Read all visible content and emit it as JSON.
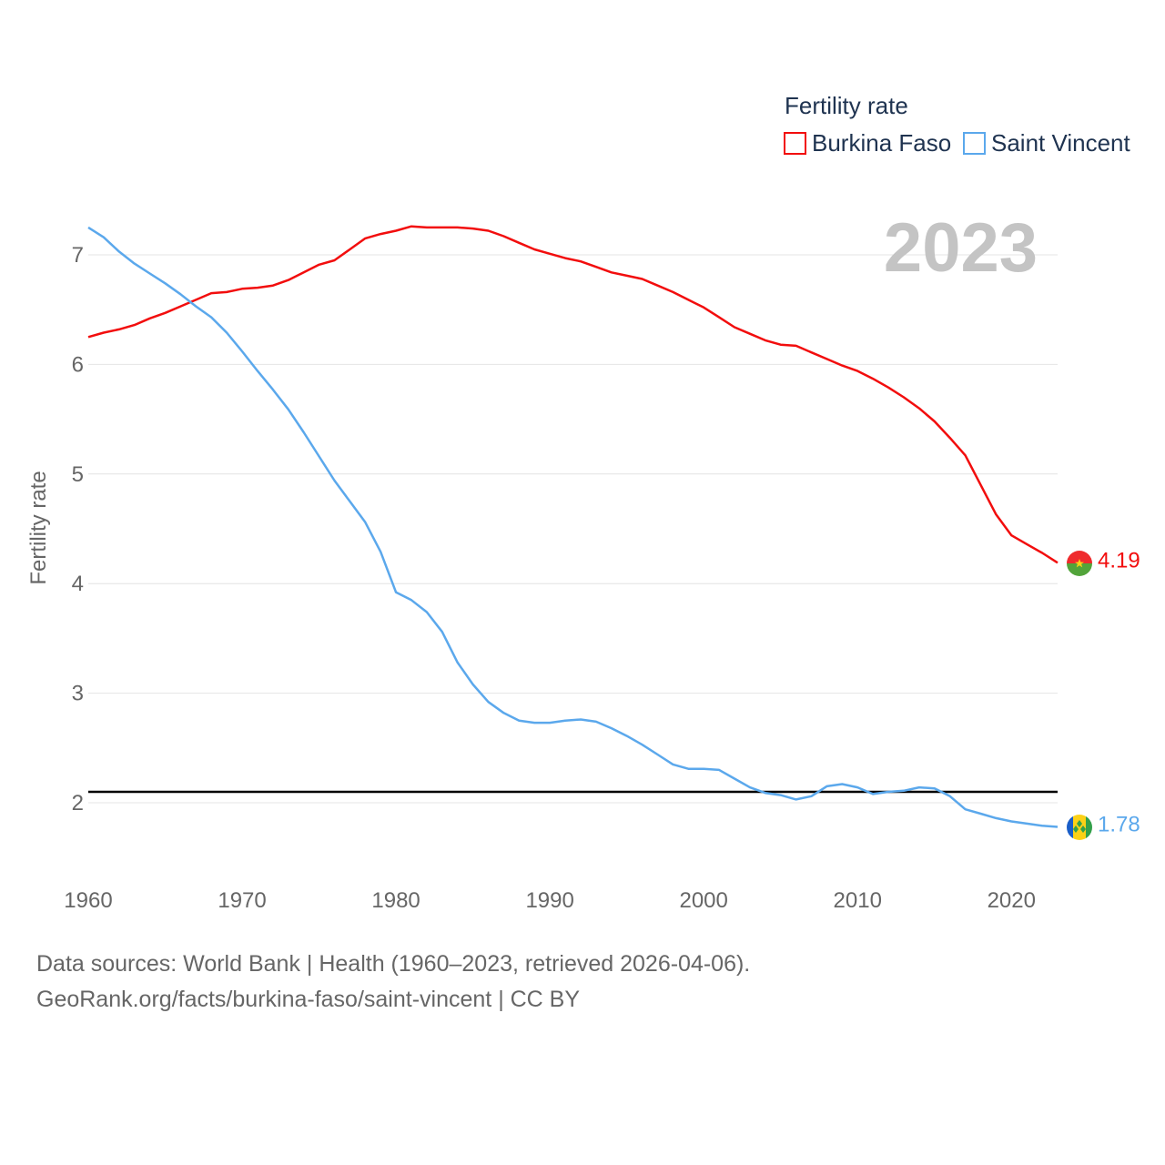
{
  "legend": {
    "title": "Fertility rate",
    "items": [
      {
        "label": "Burkina Faso",
        "color": "#f20d0d"
      },
      {
        "label": "Saint Vincent",
        "color": "#5ba8ec"
      }
    ]
  },
  "year_label": "2023",
  "source": {
    "line1": "Data sources: World Bank | Health (1960–2023, retrieved 2026-04-06).",
    "line2": "GeoRank.org/facts/burkina-faso/saint-vincent | CC BY"
  },
  "chart_data": {
    "type": "line",
    "title": "Fertility rate",
    "xlabel": "",
    "ylabel": "Fertility rate",
    "xlim": [
      1960,
      2023
    ],
    "ylim": [
      1.4,
      7.5
    ],
    "x_ticks": [
      1960,
      1970,
      1980,
      1990,
      2000,
      2010,
      2020
    ],
    "y_ticks": [
      2,
      3,
      4,
      5,
      6,
      7
    ],
    "grid": true,
    "reference_line": {
      "y": 2.1,
      "color": "#000000"
    },
    "x": [
      1960,
      1961,
      1962,
      1963,
      1964,
      1965,
      1966,
      1967,
      1968,
      1969,
      1970,
      1971,
      1972,
      1973,
      1974,
      1975,
      1976,
      1977,
      1978,
      1979,
      1980,
      1981,
      1982,
      1983,
      1984,
      1985,
      1986,
      1987,
      1988,
      1989,
      1990,
      1991,
      1992,
      1993,
      1994,
      1995,
      1996,
      1997,
      1998,
      1999,
      2000,
      2001,
      2002,
      2003,
      2004,
      2005,
      2006,
      2007,
      2008,
      2009,
      2010,
      2011,
      2012,
      2013,
      2014,
      2015,
      2016,
      2017,
      2018,
      2019,
      2020,
      2021,
      2022,
      2023
    ],
    "series": [
      {
        "name": "Burkina Faso",
        "color": "#f20d0d",
        "end_label": "4.19",
        "values": [
          6.25,
          6.29,
          6.32,
          6.36,
          6.42,
          6.47,
          6.53,
          6.59,
          6.65,
          6.66,
          6.69,
          6.7,
          6.72,
          6.77,
          6.84,
          6.91,
          6.95,
          7.05,
          7.15,
          7.19,
          7.22,
          7.26,
          7.25,
          7.25,
          7.25,
          7.24,
          7.22,
          7.17,
          7.11,
          7.05,
          7.01,
          6.97,
          6.94,
          6.89,
          6.84,
          6.81,
          6.78,
          6.72,
          6.66,
          6.59,
          6.52,
          6.43,
          6.34,
          6.28,
          6.22,
          6.18,
          6.17,
          6.11,
          6.05,
          5.99,
          5.94,
          5.87,
          5.79,
          5.7,
          5.6,
          5.48,
          5.33,
          5.17,
          4.9,
          4.63,
          4.44,
          4.36,
          4.28,
          4.19
        ]
      },
      {
        "name": "Saint Vincent",
        "color": "#5ba8ec",
        "end_label": "1.78",
        "values": [
          7.25,
          7.16,
          7.03,
          6.92,
          6.83,
          6.74,
          6.64,
          6.53,
          6.43,
          6.29,
          6.12,
          5.94,
          5.77,
          5.59,
          5.38,
          5.16,
          4.94,
          4.75,
          4.56,
          4.29,
          3.92,
          3.85,
          3.74,
          3.56,
          3.28,
          3.08,
          2.92,
          2.82,
          2.75,
          2.73,
          2.73,
          2.75,
          2.76,
          2.74,
          2.68,
          2.61,
          2.53,
          2.44,
          2.35,
          2.31,
          2.31,
          2.3,
          2.22,
          2.14,
          2.09,
          2.07,
          2.03,
          2.06,
          2.15,
          2.17,
          2.14,
          2.08,
          2.1,
          2.11,
          2.14,
          2.13,
          2.06,
          1.94,
          1.9,
          1.86,
          1.83,
          1.81,
          1.79,
          1.78
        ]
      }
    ]
  }
}
